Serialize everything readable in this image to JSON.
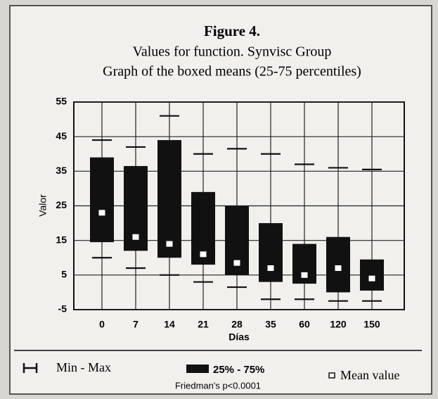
{
  "chart_data": {
    "type": "box",
    "title": "Figure 4.",
    "subtitle": [
      "Values for function. Synvisc Group",
      "Graph of the boxed means (25-75 percentiles)"
    ],
    "y_label": "Valor",
    "x_label": "Días",
    "categories": [
      "0",
      "7",
      "14",
      "21",
      "28",
      "35",
      "60",
      "120",
      "150"
    ],
    "q3": [
      39,
      36.5,
      44,
      29,
      25,
      20,
      14,
      16,
      9.5
    ],
    "q1": [
      14.5,
      12,
      10,
      8,
      5,
      3,
      2.5,
      0,
      0.5
    ],
    "mean": [
      23,
      16,
      14,
      11,
      8.5,
      7,
      5,
      7,
      4
    ],
    "max": [
      44,
      42,
      51,
      40,
      41.5,
      40,
      37,
      36,
      35.5
    ],
    "min": [
      10,
      7,
      5,
      3,
      1.5,
      -2,
      -2,
      -2.5,
      -2.5
    ],
    "ylim": [
      -5,
      55
    ],
    "yticks": [
      55,
      45,
      35,
      25,
      15,
      5,
      -5
    ],
    "grid": true,
    "color": "#111111",
    "legend": {
      "minmax": "Min - Max",
      "box": "25% - 75%",
      "mean": "Mean value"
    },
    "note": "Friedman's p<0.0001"
  }
}
